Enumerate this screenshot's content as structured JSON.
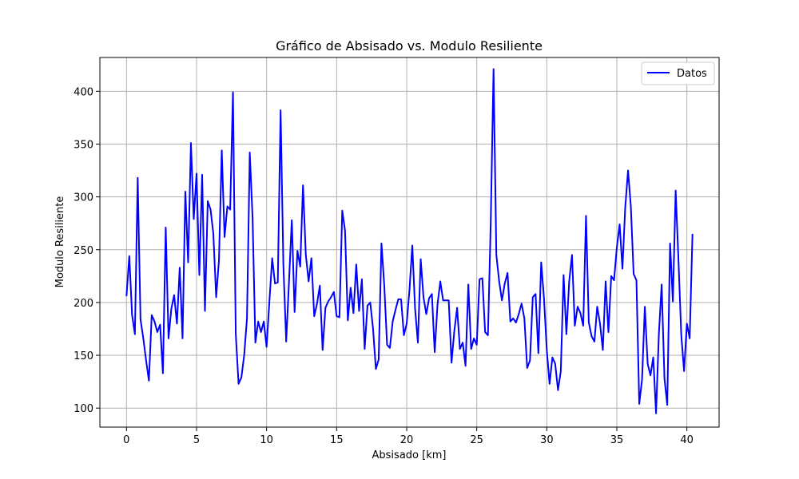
{
  "chart_data": {
    "type": "line",
    "title": "Gráfico de Absisado vs. Modulo Resiliente",
    "xlabel": "Absisado [km]",
    "ylabel": "Modulo Resiliente",
    "xlim": [
      -1.9,
      42.3
    ],
    "ylim": [
      82,
      432
    ],
    "xticks": [
      0,
      5,
      10,
      15,
      20,
      25,
      30,
      35,
      40
    ],
    "yticks": [
      100,
      150,
      200,
      250,
      300,
      350,
      400
    ],
    "grid": true,
    "legend_position": "top-right",
    "series": [
      {
        "name": "Datos",
        "color": "#0000ff",
        "x": [
          0.0,
          0.2,
          0.4,
          0.6,
          0.8,
          1.0,
          1.2,
          1.4,
          1.6,
          1.8,
          2.0,
          2.2,
          2.4,
          2.6,
          2.8,
          3.0,
          3.2,
          3.4,
          3.6,
          3.8,
          4.0,
          4.2,
          4.4,
          4.6,
          4.8,
          5.0,
          5.2,
          5.4,
          5.6,
          5.8,
          6.0,
          6.2,
          6.4,
          6.6,
          6.8,
          7.0,
          7.2,
          7.4,
          7.6,
          7.8,
          8.0,
          8.2,
          8.4,
          8.6,
          8.8,
          9.0,
          9.2,
          9.4,
          9.6,
          9.8,
          10.0,
          10.2,
          10.4,
          10.6,
          10.8,
          11.0,
          11.2,
          11.4,
          11.6,
          11.8,
          12.0,
          12.2,
          12.4,
          12.6,
          12.8,
          13.0,
          13.2,
          13.4,
          13.6,
          13.8,
          14.0,
          14.2,
          14.4,
          14.6,
          14.8,
          15.0,
          15.2,
          15.4,
          15.6,
          15.8,
          16.0,
          16.2,
          16.4,
          16.6,
          16.8,
          17.0,
          17.2,
          17.4,
          17.6,
          17.8,
          18.0,
          18.2,
          18.4,
          18.6,
          18.8,
          19.0,
          19.2,
          19.4,
          19.6,
          19.8,
          20.0,
          20.2,
          20.4,
          20.6,
          20.8,
          21.0,
          21.2,
          21.4,
          21.6,
          21.8,
          22.0,
          22.2,
          22.4,
          22.6,
          22.8,
          23.0,
          23.2,
          23.4,
          23.6,
          23.8,
          24.0,
          24.2,
          24.4,
          24.6,
          24.8,
          25.0,
          25.2,
          25.4,
          25.6,
          25.8,
          26.0,
          26.2,
          26.4,
          26.6,
          26.8,
          27.0,
          27.2,
          27.4,
          27.6,
          27.8,
          28.0,
          28.2,
          28.4,
          28.6,
          28.8,
          29.0,
          29.2,
          29.4,
          29.6,
          29.8,
          30.0,
          30.2,
          30.4,
          30.6,
          30.8,
          31.0,
          31.2,
          31.4,
          31.6,
          31.8,
          32.0,
          32.2,
          32.4,
          32.6,
          32.8,
          33.0,
          33.2,
          33.4,
          33.6,
          33.8,
          34.0,
          34.2,
          34.4,
          34.6,
          34.8,
          35.0,
          35.2,
          35.4,
          35.6,
          35.8,
          36.0,
          36.2,
          36.4,
          36.6,
          36.8,
          37.0,
          37.2,
          37.4,
          37.6,
          37.8,
          38.0,
          38.2,
          38.4,
          38.6,
          38.8,
          39.0,
          39.2,
          39.4,
          39.6,
          39.8,
          40.0,
          40.2,
          40.4
        ],
        "y": [
          206,
          244,
          188,
          170,
          318,
          184,
          166,
          145,
          126,
          188,
          182,
          172,
          179,
          133,
          271,
          166,
          194,
          207,
          180,
          233,
          166,
          305,
          238,
          351,
          279,
          322,
          226,
          321,
          192,
          296,
          288,
          265,
          205,
          240,
          344,
          262,
          291,
          288,
          399,
          170,
          123,
          129,
          150,
          185,
          342,
          280,
          162,
          182,
          172,
          182,
          158,
          201,
          242,
          218,
          219,
          382,
          235,
          163,
          220,
          278,
          191,
          249,
          234,
          311,
          245,
          220,
          242,
          187,
          199,
          216,
          155,
          195,
          201,
          205,
          210,
          187,
          186,
          287,
          268,
          183,
          214,
          190,
          236,
          192,
          222,
          156,
          197,
          200,
          175,
          137,
          146,
          256,
          216,
          160,
          157,
          182,
          193,
          203,
          203,
          169,
          180,
          212,
          254,
          194,
          162,
          241,
          205,
          189,
          204,
          208,
          153,
          198,
          220,
          202,
          202,
          202,
          143,
          173,
          195,
          156,
          162,
          140,
          217,
          156,
          166,
          160,
          222,
          223,
          172,
          169,
          276,
          421,
          245,
          220,
          202,
          218,
          228,
          182,
          185,
          181,
          189,
          199,
          185,
          138,
          145,
          205,
          208,
          152,
          238,
          204,
          155,
          123,
          148,
          142,
          117,
          135,
          226,
          170,
          220,
          245,
          178,
          196,
          190,
          178,
          282,
          181,
          168,
          163,
          196,
          180,
          155,
          220,
          172,
          225,
          221,
          252,
          274,
          232,
          290,
          325,
          291,
          227,
          221,
          104,
          127,
          196,
          142,
          131,
          148,
          95,
          170,
          217,
          128,
          103,
          256,
          201,
          306,
          240,
          169,
          135,
          180,
          166,
          265
        ]
      }
    ]
  }
}
